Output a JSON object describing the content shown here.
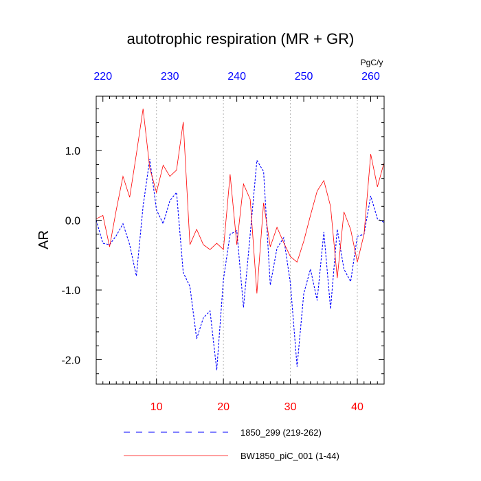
{
  "chart_data": {
    "type": "line",
    "title": "autotrophic respiration (MR + GR)",
    "ylabel": "AR",
    "units": "PgC/y",
    "xlim": [
      1,
      44
    ],
    "ylim": [
      -2.35,
      1.78
    ],
    "x_top_offset": 218,
    "bottom_ticks": [
      {
        "value": 10,
        "label": "10"
      },
      {
        "value": 20,
        "label": "20"
      },
      {
        "value": 30,
        "label": "30"
      },
      {
        "value": 40,
        "label": "40"
      }
    ],
    "top_ticks": [
      {
        "value": 220,
        "label": "220"
      },
      {
        "value": 230,
        "label": "230"
      },
      {
        "value": 240,
        "label": "240"
      },
      {
        "value": 250,
        "label": "250"
      },
      {
        "value": 260,
        "label": "260"
      }
    ],
    "y_ticks": [
      {
        "value": 1.0,
        "label": "1.0"
      },
      {
        "value": 0.0,
        "label": "0.0"
      },
      {
        "value": -1.0,
        "label": "-1.0"
      },
      {
        "value": -2.0,
        "label": "-2.0"
      }
    ],
    "series": [
      {
        "name": "1850_299 (219-262)",
        "color": "#0000ff",
        "style": "dashed",
        "x": [
          1,
          2,
          3,
          4,
          5,
          6,
          7,
          8,
          9,
          10,
          11,
          12,
          13,
          14,
          15,
          16,
          17,
          18,
          19,
          20,
          21,
          22,
          23,
          24,
          25,
          26,
          27,
          28,
          29,
          30,
          31,
          32,
          33,
          34,
          35,
          36,
          37,
          38,
          39,
          40,
          41,
          42,
          43,
          44
        ],
        "values": [
          0.0,
          -0.33,
          -0.35,
          -0.22,
          -0.05,
          -0.35,
          -0.8,
          0.2,
          0.88,
          0.15,
          -0.05,
          0.28,
          0.4,
          -0.75,
          -0.95,
          -1.7,
          -1.4,
          -1.3,
          -2.15,
          -0.85,
          -0.2,
          -0.15,
          -1.25,
          -0.2,
          0.86,
          0.7,
          -0.93,
          -0.4,
          -0.25,
          -0.9,
          -2.1,
          -1.05,
          -0.7,
          -1.15,
          -0.17,
          -1.27,
          -0.13,
          -0.7,
          -0.88,
          -0.23,
          -0.2,
          0.35,
          0.02,
          -0.03
        ]
      },
      {
        "name": "BW1850_piC_001 (1-44)",
        "color": "#ff0000",
        "style": "solid",
        "x": [
          1,
          2,
          3,
          4,
          5,
          6,
          7,
          8,
          9,
          10,
          11,
          12,
          13,
          14,
          15,
          16,
          17,
          18,
          19,
          20,
          21,
          22,
          23,
          24,
          25,
          26,
          27,
          28,
          29,
          30,
          31,
          32,
          33,
          34,
          35,
          36,
          37,
          38,
          39,
          40,
          41,
          42,
          43,
          44
        ],
        "values": [
          0.02,
          0.07,
          -0.38,
          0.15,
          0.63,
          0.33,
          0.95,
          1.6,
          0.75,
          0.4,
          0.79,
          0.63,
          0.72,
          1.41,
          -0.35,
          -0.13,
          -0.35,
          -0.42,
          -0.33,
          -0.42,
          0.66,
          -0.35,
          0.52,
          0.3,
          -1.05,
          0.25,
          -0.38,
          -0.1,
          -0.32,
          -0.52,
          -0.6,
          -0.3,
          0.07,
          0.42,
          0.57,
          0.2,
          -0.83,
          0.12,
          -0.13,
          -0.6,
          -0.2,
          0.95,
          0.48,
          0.83
        ]
      }
    ]
  }
}
